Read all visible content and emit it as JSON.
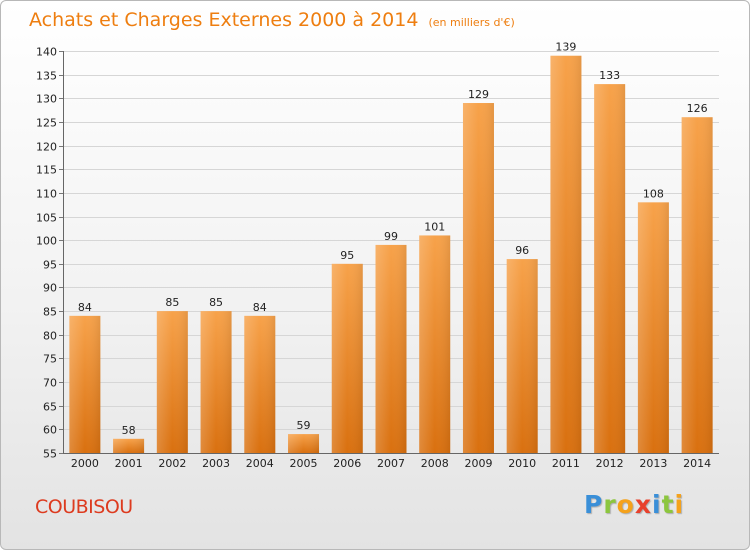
{
  "chart_data": {
    "type": "bar",
    "title": "Achats et Charges Externes 2000 à 2014",
    "subtitle": "(en milliers d'€)",
    "categories": [
      "2000",
      "2001",
      "2002",
      "2003",
      "2004",
      "2005",
      "2006",
      "2007",
      "2008",
      "2009",
      "2010",
      "2011",
      "2012",
      "2013",
      "2014"
    ],
    "values": [
      84,
      58,
      85,
      85,
      84,
      59,
      95,
      99,
      101,
      129,
      96,
      139,
      133,
      108,
      126
    ],
    "ylim": [
      55,
      140
    ],
    "yticks": [
      55,
      60,
      65,
      70,
      75,
      80,
      85,
      90,
      95,
      100,
      105,
      110,
      115,
      120,
      125,
      130,
      135,
      140
    ],
    "grid": true,
    "bar_color": "#f0891f"
  },
  "footer": {
    "place": "COUBISOU",
    "logo_letters": [
      {
        "char": "P",
        "color": "#3a8fd8"
      },
      {
        "char": "r",
        "color": "#8cc63e"
      },
      {
        "char": "o",
        "color": "#f5a21b"
      },
      {
        "char": "x",
        "color": "#e8412c"
      },
      {
        "char": "i",
        "color": "#3a8fd8"
      },
      {
        "char": "t",
        "color": "#8cc63e"
      },
      {
        "char": "i",
        "color": "#f5a21b"
      }
    ]
  }
}
